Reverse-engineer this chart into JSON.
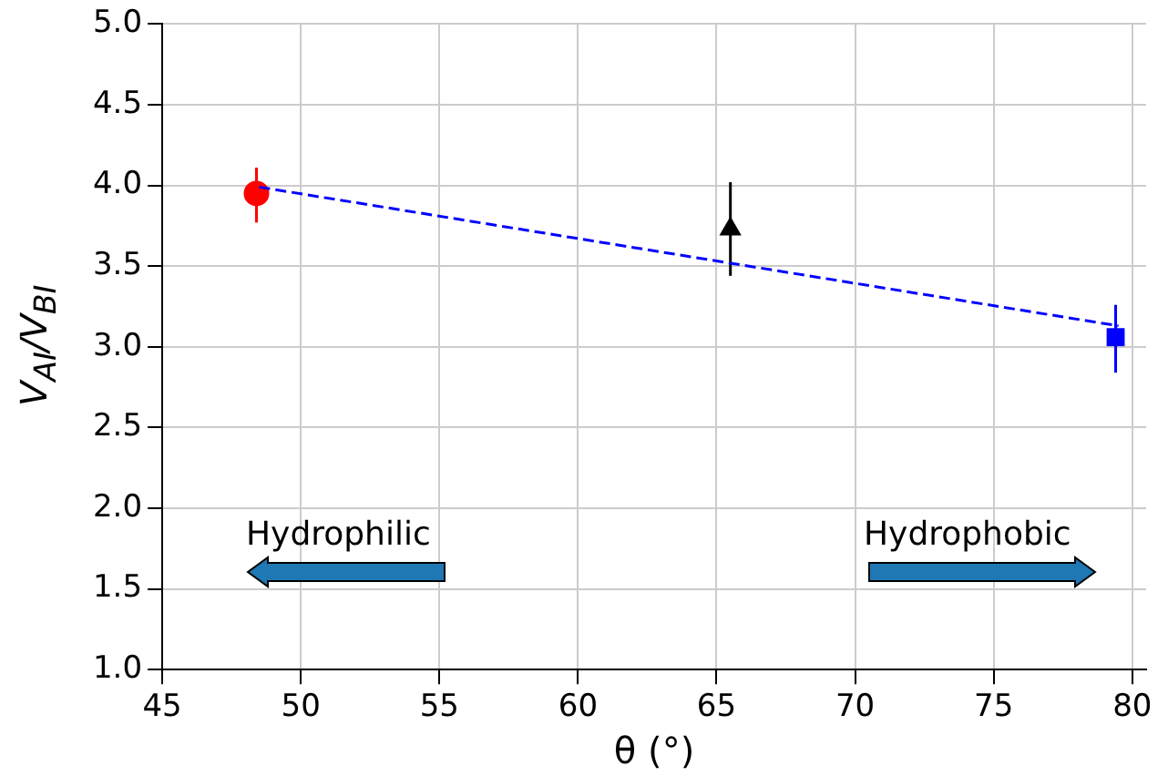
{
  "chart_data": {
    "type": "scatter",
    "xlabel": "θ (°)",
    "ylabel": "V$_{AI}$/V$_{BI}$",
    "xlim": [
      45,
      80.5
    ],
    "xticks": [
      45,
      50,
      55,
      60,
      65,
      70,
      75,
      80
    ],
    "ylim": [
      1,
      5
    ],
    "yticks": [
      {
        "value": 1,
        "label": "1.0"
      },
      {
        "value": 1.5,
        "label": "1.5"
      },
      {
        "value": 2,
        "label": "2.0"
      },
      {
        "value": 2.5,
        "label": "2.5"
      },
      {
        "value": 3,
        "label": "3.0"
      },
      {
        "value": 3.5,
        "label": "3.5"
      },
      {
        "value": 4,
        "label": "4.0"
      },
      {
        "value": 4.5,
        "label": "4.5"
      },
      {
        "value": 5,
        "label": "5.0"
      }
    ],
    "grid": true,
    "annotations": [
      "Hydrophilic",
      "Hydrophobic"
    ],
    "series": [
      {
        "type": "line",
        "x": [
          48.5,
          79.5
        ],
        "values": [
          3.99,
          3.13
        ],
        "color": "#0000ff",
        "line_style": "dashed",
        "marker": "none"
      },
      {
        "type": "scatter",
        "x": [
          48.4
        ],
        "values": [
          3.95
        ],
        "errors": [
          [
            3.77,
            4.11
          ]
        ],
        "color": "#ff0000",
        "marker": "circle"
      },
      {
        "type": "scatter",
        "x": [
          65.5
        ],
        "values": [
          3.73
        ],
        "errors": [
          [
            3.44,
            4.02
          ]
        ],
        "color": "#000000",
        "marker": "triangle"
      },
      {
        "type": "scatter",
        "x": [
          79.4
        ],
        "values": [
          3.06
        ],
        "errors": [
          [
            2.84,
            3.26
          ]
        ],
        "color": "#0000ff",
        "marker": "square"
      }
    ]
  }
}
